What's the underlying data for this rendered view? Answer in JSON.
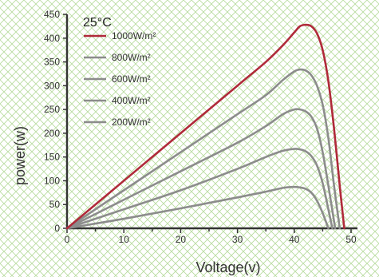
{
  "chart_data": {
    "type": "line",
    "condition_label": "25°C",
    "xlabel": "Voltage(v)",
    "ylabel": "power(w)",
    "xlim": [
      0,
      50
    ],
    "ylim": [
      0,
      450
    ],
    "x_ticks": [
      0,
      10,
      20,
      30,
      40,
      50
    ],
    "y_ticks": [
      0,
      50,
      100,
      150,
      200,
      250,
      300,
      350,
      400,
      450
    ],
    "grid": "diamond lattice background",
    "legend_placement": "top-left",
    "series": [
      {
        "name": "1000W/m²",
        "color": "#b02a3a",
        "x": [
          0,
          10,
          20,
          30,
          35,
          38,
          40,
          41,
          42,
          43,
          44,
          45,
          46,
          47,
          48,
          48.8
        ],
        "y": [
          0,
          100,
          200,
          300,
          350,
          385,
          412,
          425,
          428,
          425,
          410,
          375,
          310,
          210,
          90,
          0
        ]
      },
      {
        "name": "800W/m²",
        "color": "#8c8c8c",
        "x": [
          0,
          10,
          20,
          30,
          35,
          38,
          40,
          41,
          42,
          43,
          44,
          45,
          46,
          47,
          48
        ],
        "y": [
          0,
          80,
          160,
          240,
          280,
          312,
          330,
          334,
          332,
          322,
          300,
          260,
          190,
          90,
          0
        ]
      },
      {
        "name": "600W/m²",
        "color": "#8c8c8c",
        "x": [
          0,
          10,
          20,
          30,
          35,
          38,
          40,
          41,
          42,
          43,
          44,
          45,
          46,
          47.2
        ],
        "y": [
          0,
          60,
          120,
          180,
          215,
          240,
          250,
          250,
          246,
          235,
          210,
          160,
          90,
          0
        ]
      },
      {
        "name": "400W/m²",
        "color": "#8c8c8c",
        "x": [
          0,
          10,
          20,
          30,
          35,
          38,
          40,
          41,
          42,
          43,
          44,
          45,
          46,
          46.7
        ],
        "y": [
          0,
          40,
          80,
          125,
          150,
          163,
          167,
          166,
          162,
          152,
          132,
          95,
          40,
          0
        ]
      },
      {
        "name": "200W/m²",
        "color": "#8c8c8c",
        "x": [
          0,
          10,
          20,
          30,
          35,
          38,
          40,
          41,
          42,
          43,
          44,
          45,
          46
        ],
        "y": [
          0,
          20,
          42,
          65,
          77,
          85,
          87,
          86,
          83,
          75,
          58,
          32,
          0
        ]
      }
    ]
  }
}
